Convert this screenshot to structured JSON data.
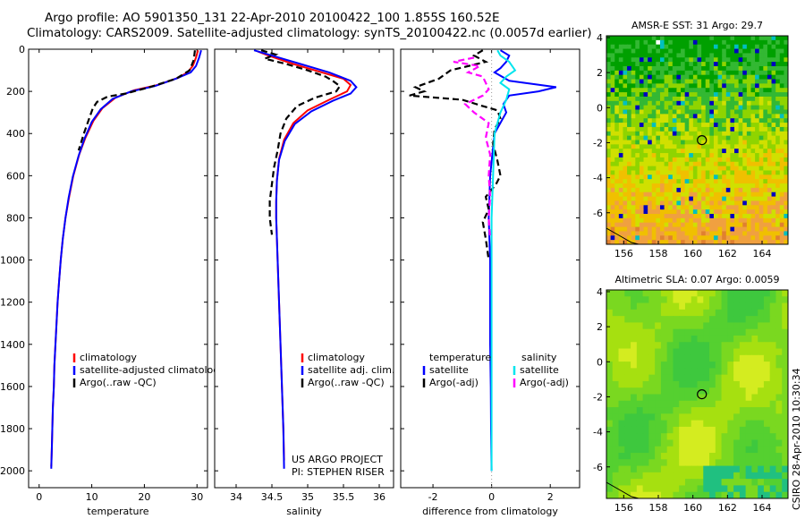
{
  "title_line1": "Argo profile: AO 5901350_131 22-Apr-2010 20100422_100 1.855S 160.52E",
  "title_line2": "Climatology: CARS2009. Satellite-adjusted climatology: synTS_20100422.nc (0.0057d earlier)",
  "credit": "CSIRO 28-Apr-2010 10:30:34",
  "project_note": [
    "US ARGO PROJECT",
    "PI: STEPHEN RISER"
  ],
  "colors": {
    "climatology": "#ff0000",
    "satellite": "#0000ff",
    "argo": "#000000",
    "salinity_satellite": "#00e5ee",
    "salinity_argo": "#ff00ff"
  },
  "chart_data": [
    {
      "type": "line",
      "id": "temperature",
      "xlabel": "temperature",
      "ylabel": "",
      "xlim": [
        -2,
        32
      ],
      "ylim": [
        2080,
        0
      ],
      "xticks": [
        0,
        10,
        20,
        30
      ],
      "yticks": [
        0,
        200,
        400,
        600,
        800,
        1000,
        1200,
        1400,
        1600,
        1800,
        2000
      ],
      "legend": [
        "climatology",
        "satellite-adjusted climatology",
        "Argo(..raw -QC)"
      ],
      "legend_position": "lower-left",
      "series": [
        {
          "name": "climatology",
          "color": "#ff0000",
          "style": "solid",
          "points": [
            [
              30.2,
              5
            ],
            [
              29.8,
              40
            ],
            [
              29.2,
              80
            ],
            [
              28.2,
              110
            ],
            [
              26.5,
              135
            ],
            [
              22.5,
              170
            ],
            [
              18,
              195
            ],
            [
              14.5,
              230
            ],
            [
              12,
              280
            ],
            [
              10.3,
              340
            ],
            [
              8.8,
              420
            ],
            [
              7.6,
              500
            ],
            [
              6.5,
              600
            ],
            [
              5.7,
              700
            ],
            [
              5,
              800
            ],
            [
              4.5,
              900
            ],
            [
              4.1,
              1000
            ],
            [
              3.8,
              1100
            ],
            [
              3.5,
              1200
            ],
            [
              3.3,
              1300
            ],
            [
              3.1,
              1400
            ],
            [
              2.9,
              1500
            ],
            [
              2.8,
              1600
            ],
            [
              2.6,
              1700
            ],
            [
              2.5,
              1800
            ],
            [
              2.4,
              1900
            ],
            [
              2.3,
              1980
            ]
          ]
        },
        {
          "name": "satellite-adjusted climatology",
          "color": "#0000ff",
          "style": "solid",
          "points": [
            [
              30.8,
              5
            ],
            [
              30.4,
              40
            ],
            [
              29.8,
              80
            ],
            [
              28.8,
              110
            ],
            [
              26,
              140
            ],
            [
              22,
              175
            ],
            [
              17.5,
              200
            ],
            [
              14,
              235
            ],
            [
              11.7,
              285
            ],
            [
              10,
              345
            ],
            [
              8.6,
              425
            ],
            [
              7.5,
              505
            ],
            [
              6.4,
              605
            ],
            [
              5.6,
              705
            ],
            [
              5,
              800
            ],
            [
              4.5,
              900
            ],
            [
              4.1,
              1000
            ],
            [
              3.8,
              1100
            ],
            [
              3.5,
              1200
            ],
            [
              3.3,
              1300
            ],
            [
              3.1,
              1400
            ],
            [
              2.9,
              1500
            ],
            [
              2.8,
              1600
            ],
            [
              2.6,
              1700
            ],
            [
              2.5,
              1800
            ],
            [
              2.4,
              1900
            ],
            [
              2.3,
              1990
            ]
          ]
        },
        {
          "name": "Argo(..raw -QC)",
          "color": "#000000",
          "style": "dashed",
          "points": [
            [
              29.6,
              5
            ],
            [
              29.4,
              50
            ],
            [
              28.6,
              100
            ],
            [
              26,
              140
            ],
            [
              21,
              180
            ],
            [
              16.5,
              210
            ],
            [
              13,
              225
            ],
            [
              11,
              250
            ],
            [
              10.2,
              280
            ],
            [
              9.5,
              330
            ],
            [
              8.5,
              400
            ],
            [
              7.5,
              480
            ]
          ]
        }
      ]
    },
    {
      "type": "line",
      "id": "salinity",
      "xlabel": "salinity",
      "ylabel": "",
      "xlim": [
        33.7,
        36.2
      ],
      "ylim": [
        2080,
        0
      ],
      "xticks": [
        34,
        34.5,
        35,
        35.5,
        36
      ],
      "yticks": [
        0,
        200,
        400,
        600,
        800,
        1000,
        1200,
        1400,
        1600,
        1800,
        2000
      ],
      "legend": [
        "climatology",
        "satellite adj. clim.",
        "Argo(..raw -QC)"
      ],
      "legend_position": "lower-left",
      "series": [
        {
          "name": "climatology",
          "color": "#ff0000",
          "style": "solid",
          "points": [
            [
              34.3,
              10
            ],
            [
              34.45,
              30
            ],
            [
              34.8,
              70
            ],
            [
              35.2,
              110
            ],
            [
              35.5,
              140
            ],
            [
              35.6,
              170
            ],
            [
              35.55,
              200
            ],
            [
              35.3,
              240
            ],
            [
              35.0,
              290
            ],
            [
              34.8,
              350
            ],
            [
              34.67,
              430
            ],
            [
              34.6,
              520
            ],
            [
              34.57,
              620
            ],
            [
              34.56,
              720
            ],
            [
              34.56,
              800
            ],
            [
              34.57,
              900
            ],
            [
              34.58,
              1000
            ],
            [
              34.6,
              1200
            ],
            [
              34.62,
              1400
            ],
            [
              34.64,
              1600
            ],
            [
              34.66,
              1800
            ],
            [
              34.67,
              1950
            ]
          ]
        },
        {
          "name": "satellite adj. clim.",
          "color": "#0000ff",
          "style": "solid",
          "points": [
            [
              34.25,
              5
            ],
            [
              34.5,
              30
            ],
            [
              34.9,
              70
            ],
            [
              35.3,
              110
            ],
            [
              35.6,
              150
            ],
            [
              35.68,
              180
            ],
            [
              35.6,
              210
            ],
            [
              35.35,
              245
            ],
            [
              35.05,
              295
            ],
            [
              34.82,
              355
            ],
            [
              34.68,
              435
            ],
            [
              34.6,
              525
            ],
            [
              34.57,
              625
            ],
            [
              34.56,
              725
            ],
            [
              34.56,
              800
            ],
            [
              34.57,
              900
            ],
            [
              34.58,
              1000
            ],
            [
              34.6,
              1200
            ],
            [
              34.62,
              1400
            ],
            [
              34.64,
              1600
            ],
            [
              34.66,
              1800
            ],
            [
              34.67,
              1990
            ]
          ]
        },
        {
          "name": "Argo(..raw -QC)",
          "color": "#000000",
          "style": "dashed",
          "points": [
            [
              34.35,
              5
            ],
            [
              34.55,
              25
            ],
            [
              34.4,
              45
            ],
            [
              34.7,
              70
            ],
            [
              35.0,
              100
            ],
            [
              35.25,
              130
            ],
            [
              35.35,
              150
            ],
            [
              35.45,
              175
            ],
            [
              35.4,
              200
            ],
            [
              35.1,
              230
            ],
            [
              34.85,
              270
            ],
            [
              34.7,
              330
            ],
            [
              34.62,
              400
            ],
            [
              34.58,
              480
            ],
            [
              34.53,
              560
            ],
            [
              34.5,
              640
            ],
            [
              34.47,
              720
            ],
            [
              34.47,
              800
            ],
            [
              34.5,
              880
            ]
          ]
        }
      ]
    },
    {
      "type": "line",
      "id": "difference",
      "xlabel": "difference from climatology",
      "ylabel": "",
      "xlim": [
        -3.1,
        3.0
      ],
      "ylim": [
        2080,
        0
      ],
      "xticks": [
        -2,
        0,
        2
      ],
      "yticks": [
        0,
        200,
        400,
        600,
        800,
        1000,
        1200,
        1400,
        1600,
        1800,
        2000
      ],
      "legend_columns": [
        {
          "header": "temperature",
          "items": [
            "satellite",
            "Argo(-adj)"
          ]
        },
        {
          "header": "salinity",
          "items": [
            "satellite",
            "Argo(-adj)"
          ]
        }
      ],
      "legend_position": "lower-center",
      "series": [
        {
          "name": "temperature satellite",
          "color": "#0000ff",
          "style": "solid",
          "points": [
            [
              0.3,
              5
            ],
            [
              0.6,
              30
            ],
            [
              0.5,
              60
            ],
            [
              0.3,
              90
            ],
            [
              0.1,
              110
            ],
            [
              0.6,
              150
            ],
            [
              2.2,
              180
            ],
            [
              1.6,
              200
            ],
            [
              0.6,
              220
            ],
            [
              0.4,
              260
            ],
            [
              0.5,
              300
            ],
            [
              0.1,
              400
            ],
            [
              -0.05,
              600
            ],
            [
              -0.1,
              800
            ],
            [
              -0.05,
              1000
            ],
            [
              -0.05,
              1200
            ],
            [
              -0.05,
              1400
            ],
            [
              -0.03,
              1600
            ],
            [
              -0.02,
              1800
            ],
            [
              0,
              2000
            ]
          ]
        },
        {
          "name": "temperature Argo(-adj)",
          "color": "#000000",
          "style": "dashed",
          "points": [
            [
              -0.3,
              5
            ],
            [
              -0.6,
              30
            ],
            [
              -0.2,
              60
            ],
            [
              -1.4,
              100
            ],
            [
              -1.8,
              140
            ],
            [
              -2.6,
              180
            ],
            [
              -2.3,
              200
            ],
            [
              -2.8,
              220
            ],
            [
              -1.0,
              240
            ],
            [
              -0.3,
              270
            ],
            [
              0.2,
              290
            ],
            [
              0.3,
              330
            ],
            [
              0.1,
              380
            ],
            [
              0.05,
              450
            ],
            [
              0.2,
              530
            ],
            [
              0.3,
              600
            ],
            [
              0.15,
              640
            ],
            [
              -0.2,
              700
            ],
            [
              -0.1,
              760
            ],
            [
              -0.3,
              820
            ],
            [
              -0.2,
              900
            ],
            [
              -0.1,
              1000
            ]
          ]
        },
        {
          "name": "salinity satellite",
          "color": "#00e5ee",
          "style": "solid",
          "points": [
            [
              0.2,
              5
            ],
            [
              0.3,
              30
            ],
            [
              0.6,
              60
            ],
            [
              0.8,
              100
            ],
            [
              0.5,
              130
            ],
            [
              0.3,
              160
            ],
            [
              0.6,
              190
            ],
            [
              0.5,
              240
            ],
            [
              0.3,
              300
            ],
            [
              0.1,
              400
            ],
            [
              0.05,
              600
            ],
            [
              0,
              800
            ],
            [
              0,
              1000
            ],
            [
              0,
              1200
            ],
            [
              0,
              1400
            ],
            [
              0,
              1600
            ],
            [
              0,
              1800
            ],
            [
              0,
              2000
            ]
          ]
        },
        {
          "name": "salinity Argo(-adj)",
          "color": "#ff00ff",
          "style": "dashed",
          "points": [
            [
              -0.6,
              40
            ],
            [
              -1.3,
              60
            ],
            [
              -0.4,
              80
            ],
            [
              -0.8,
              110
            ],
            [
              -0.3,
              130
            ],
            [
              -0.2,
              160
            ],
            [
              -0.1,
              190
            ],
            [
              -0.3,
              220
            ],
            [
              -0.9,
              260
            ],
            [
              -0.6,
              300
            ],
            [
              -0.1,
              350
            ],
            [
              -0.2,
              420
            ],
            [
              -0.05,
              500
            ],
            [
              -0.1,
              600
            ],
            [
              -0.05,
              700
            ],
            [
              -0.1,
              800
            ],
            [
              -0.05,
              900
            ]
          ]
        }
      ]
    },
    {
      "type": "heatmap",
      "id": "sst_map",
      "title": "AMSR-E SST: 31 Argo: 29.7",
      "xlim": [
        155,
        165.5
      ],
      "ylim": [
        -7.8,
        4.1
      ],
      "xticks": [
        156,
        158,
        160,
        162,
        164
      ],
      "yticks": [
        -6,
        -4,
        -2,
        0,
        2,
        4
      ],
      "marker": {
        "lon": 160.52,
        "lat": -1.855
      },
      "palette": [
        "#00a000",
        "#33b833",
        "#8fd400",
        "#d0e000",
        "#f0c000",
        "#f0a040",
        "#e08030"
      ]
    },
    {
      "type": "heatmap",
      "id": "sla_map",
      "title": "Altimetric SLA: 0.07 Argo: 0.0059",
      "xlim": [
        155,
        165.5
      ],
      "ylim": [
        -7.8,
        4.1
      ],
      "xticks": [
        156,
        158,
        160,
        162,
        164
      ],
      "yticks": [
        -6,
        -4,
        -2,
        0,
        2,
        4
      ],
      "marker": {
        "lon": 160.52,
        "lat": -1.855
      },
      "palette": [
        "#3ec83e",
        "#55d030",
        "#7ad820",
        "#a6e010",
        "#d4ec20",
        "#20c080"
      ]
    }
  ]
}
